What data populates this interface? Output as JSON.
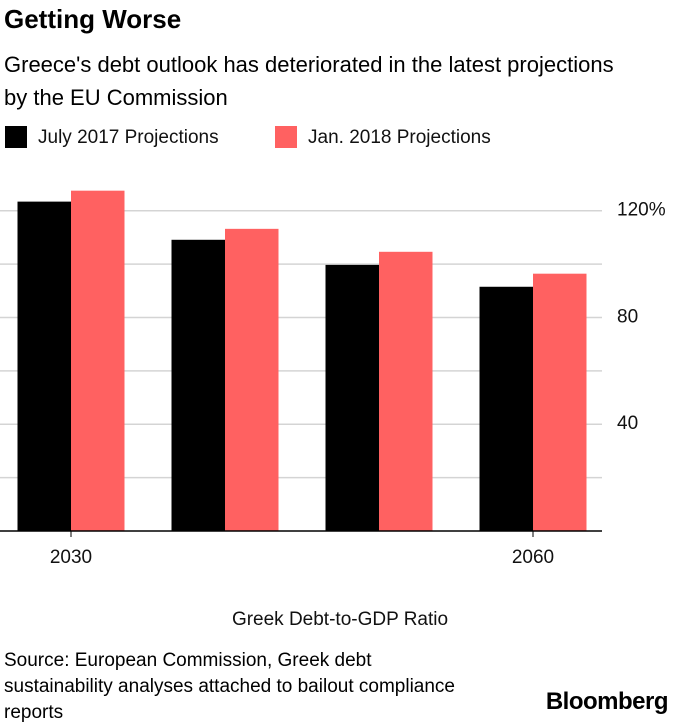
{
  "chart_data": {
    "type": "bar",
    "title": "Getting Worse",
    "subtitle": "Greece's debt outlook has deteriorated in the latest projections by the EU Commission",
    "categories": [
      "2030",
      null,
      null,
      "2060"
    ],
    "series": [
      {
        "name": "July 2017 Projections",
        "color": "#000000",
        "values": [
          123.4,
          109.1,
          99.7,
          91.5
        ]
      },
      {
        "name": "Jan. 2018 Projections",
        "color": "#ff6161",
        "values": [
          127.5,
          113.2,
          104.6,
          96.4
        ]
      }
    ],
    "ylim": [
      0,
      130
    ],
    "yticks": [
      {
        "value": 120,
        "label": "120%"
      },
      80,
      40
    ],
    "grid_lines": [
      20,
      40,
      60,
      80,
      100,
      120
    ],
    "xlabel": "Greek Debt-to-GDP Ratio",
    "source": "Source: European Commission, Greek debt sustainability analyses attached to bailout compliance reports",
    "brand": "Bloomberg"
  }
}
